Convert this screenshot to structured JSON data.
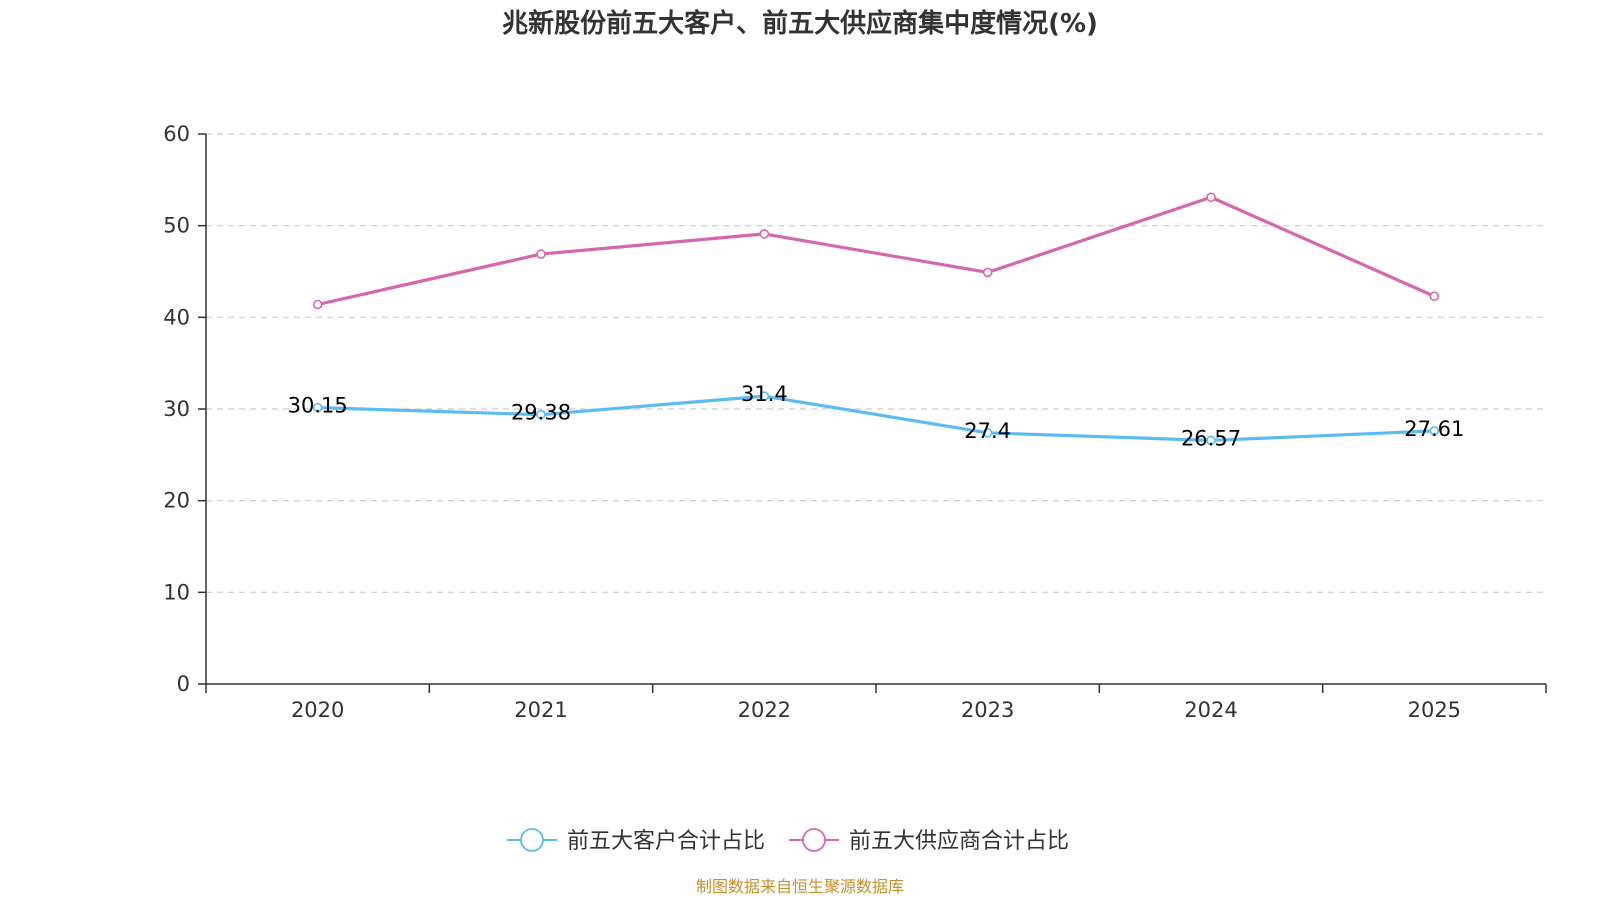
{
  "chart_data": {
    "type": "line",
    "title": "兆新股份前五大客户、前五大供应商集中度情况(%)",
    "categories": [
      "2020",
      "2021",
      "2022",
      "2023",
      "2024",
      "2025"
    ],
    "ylim": [
      0,
      60
    ],
    "yticks": [
      "0",
      "10",
      "20",
      "30",
      "40",
      "50",
      "60"
    ],
    "grid": true,
    "legend_position": "bottom-center",
    "series": [
      {
        "name": "前五大客户合计占比",
        "color": "#5bbcf0",
        "values": [
          30.15,
          29.38,
          31.4,
          27.4,
          26.57,
          27.61
        ],
        "labels": [
          "30.15",
          "29.38",
          "31.4",
          "27.4",
          "26.57",
          "27.61"
        ],
        "show_labels": true
      },
      {
        "name": "前五大供应商合计占比",
        "color": "#d467ae",
        "values": [
          41.4,
          46.9,
          49.1,
          44.9,
          53.1,
          42.3
        ],
        "show_labels": false
      }
    ]
  },
  "source": "制图数据来自恒生聚源数据库",
  "colors": {
    "axis": "#333333",
    "grid": "#cccccc",
    "source": "#c8902a"
  }
}
